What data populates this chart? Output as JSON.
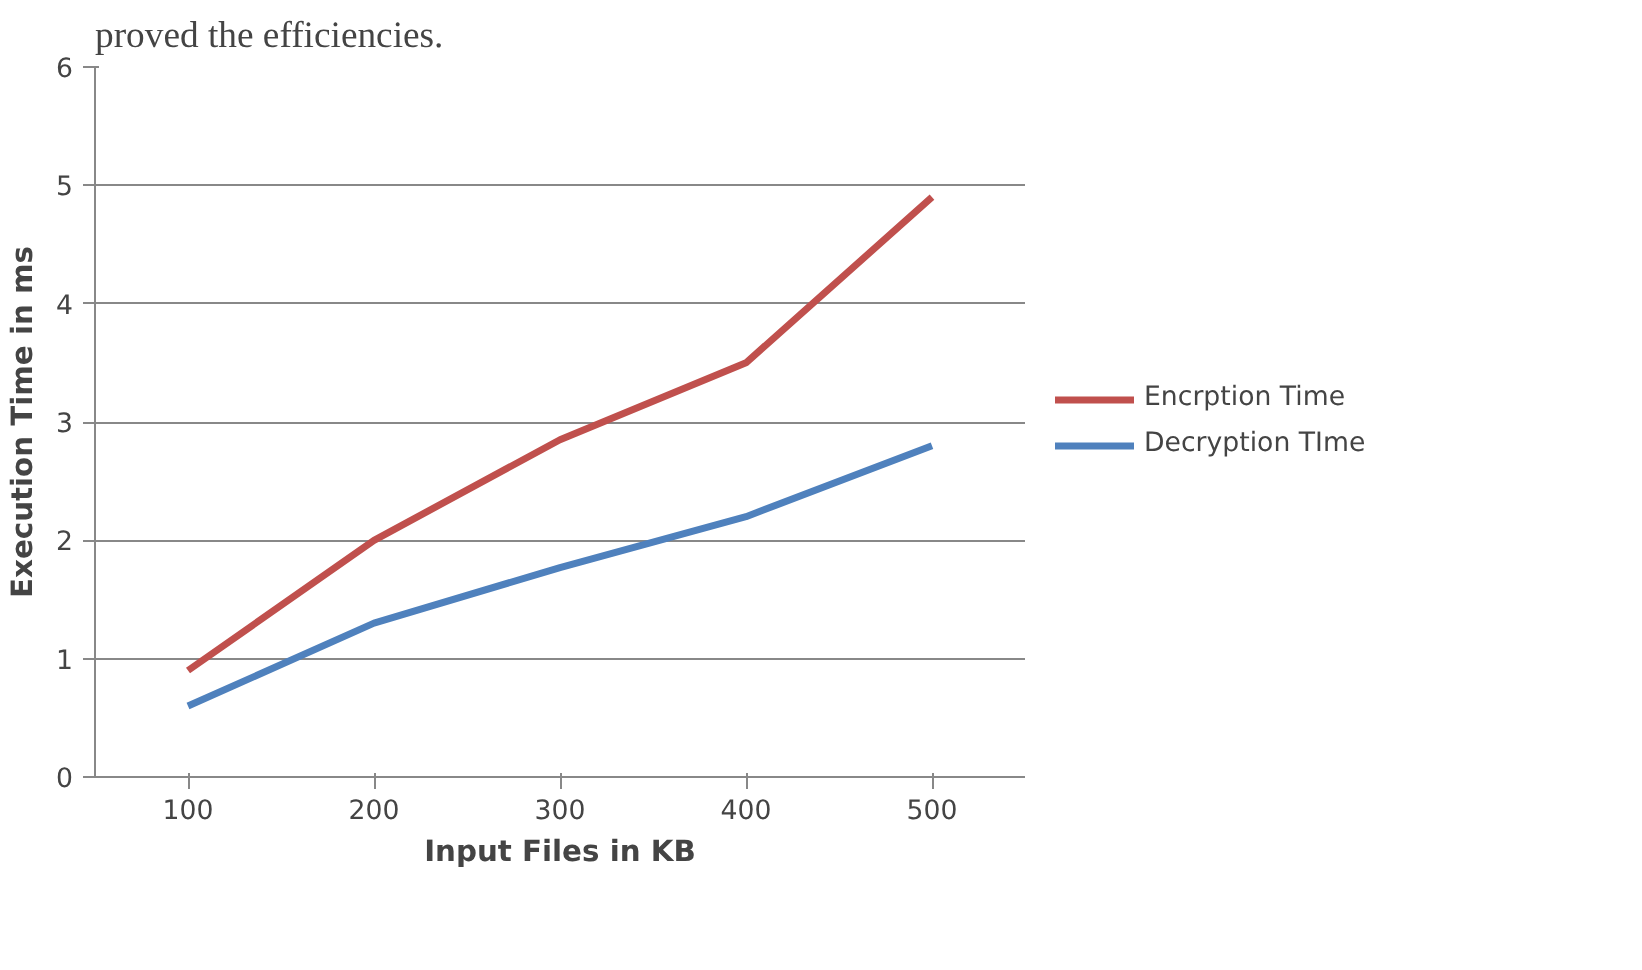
{
  "chart_data": {
    "type": "line",
    "xlabel": "Input Files in KB",
    "ylabel": "Execution Time in ms",
    "annotations": [
      "proved the efficiencies."
    ],
    "categories": [
      "100",
      "200",
      "300",
      "400",
      "500"
    ],
    "series": [
      {
        "name": "Encrption Time",
        "color": "#c0504d",
        "values": [
          0.9,
          2.0,
          2.85,
          3.5,
          4.9
        ]
      },
      {
        "name": "Decryption TIme",
        "color": "#4f81bd",
        "values": [
          0.6,
          1.3,
          1.77,
          2.2,
          2.8
        ]
      }
    ],
    "ylim": [
      0,
      6
    ],
    "yticks": [
      0,
      1,
      2,
      3,
      4,
      5,
      6
    ],
    "grid": "y",
    "legend": "right",
    "marker": "none",
    "line_style": "solid"
  }
}
